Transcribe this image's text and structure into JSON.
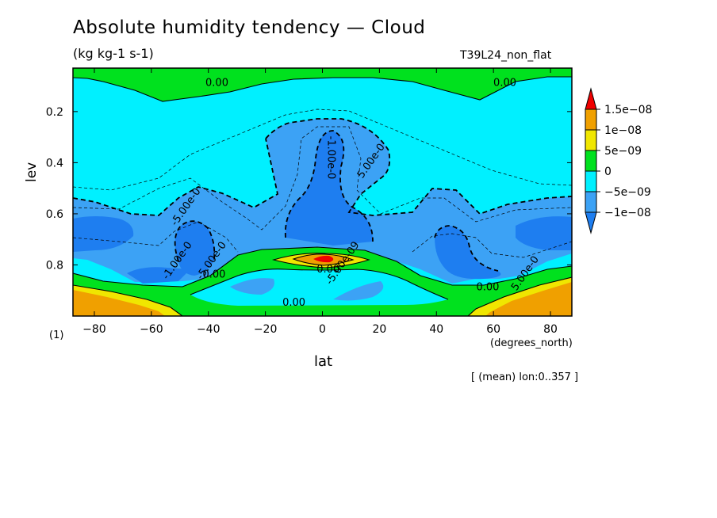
{
  "chart_data": {
    "type": "heatmap",
    "title": "Absolute humidity tendency — Cloud",
    "units": "(kg kg-1 s-1)",
    "run_label": "T39L24_non_flat",
    "xlabel": "lat",
    "xunits": "(degrees_north)",
    "ylabel": "lev",
    "panel_label": "(1)",
    "note": "[ (mean) lon:0..357 ]",
    "xlim": [
      -87.5,
      87.5
    ],
    "ylim": [
      1.0,
      0.03
    ],
    "x_ticks": [
      -80,
      -60,
      -40,
      -20,
      0,
      20,
      40,
      60,
      80
    ],
    "x_tick_labels": [
      "−80",
      "−60",
      "−40",
      "−20",
      "0",
      "20",
      "40",
      "60",
      "80"
    ],
    "y_ticks": [
      0.2,
      0.4,
      0.6,
      0.8
    ],
    "y_tick_labels": [
      "0.2",
      "0.4",
      "0.6",
      "0.8"
    ],
    "colorbar": {
      "labels": [
        "1.5e−08",
        "1e−08",
        "5e−09",
        "0",
        "−5e−09",
        "−1e−08"
      ],
      "levels": [
        -1e-08,
        -5e-09,
        0,
        5e-09,
        1e-08,
        1.5e-08
      ],
      "colors": [
        "#1e7ef0",
        "#3ca2f5",
        "#00f0ff",
        "#00e11e",
        "#f0e600",
        "#f0a000",
        "#f00000"
      ]
    },
    "contour_labels": [
      {
        "text": "0.00",
        "lat": -37,
        "lev": 0.1
      },
      {
        "text": "0.00",
        "lat": 64,
        "lev": 0.1
      },
      {
        "text": "-1.00e-0",
        "lat": 2,
        "lev": 0.38
      },
      {
        "text": "5.00e-0",
        "lat": 18,
        "lev": 0.4
      },
      {
        "text": "-5.00e-0",
        "lat": -47,
        "lev": 0.58
      },
      {
        "text": "-1.00e-0",
        "lat": -50,
        "lev": 0.79
      },
      {
        "text": "-5.00e-0",
        "lat": -38,
        "lev": 0.79
      },
      {
        "text": "0.00",
        "lat": -38,
        "lev": 0.85
      },
      {
        "text": "-5.00e-09",
        "lat": 8,
        "lev": 0.8
      },
      {
        "text": "0.00",
        "lat": 2,
        "lev": 0.83
      },
      {
        "text": "0.00",
        "lat": -10,
        "lev": 0.96
      },
      {
        "text": "0.00",
        "lat": 58,
        "lev": 0.9
      },
      {
        "text": "5.00e-0",
        "lat": 72,
        "lev": 0.84
      }
    ],
    "field_regions": [
      {
        "value": "0 to 5e-09",
        "location": "top band near lev 0.03-0.1, all latitudes"
      },
      {
        "value": "-5e-09 to 0",
        "location": "bulk of domain"
      },
      {
        "value": "-1e-08 to -5e-09",
        "location": "central column lat -20..20, lev 0.25-0.7; mid-latitude lobes near lat ±45, lev 0.5-0.85; polar bands lev 0.6-0.75"
      },
      {
        "value": "-1e-08 or less",
        "location": "equatorial core lev 0.4-0.7; mid-latitude cores near lat ±45 lev 0.65-0.82; polar cores lev 0.62-0.72"
      },
      {
        "value": "0 to 1.5e-08+",
        "location": "low-level band along lev 0.75-0.92 rising to 0.74 at equator; maximum at equator lev 0.77; polar surface lev 0.9-1.0"
      }
    ]
  }
}
